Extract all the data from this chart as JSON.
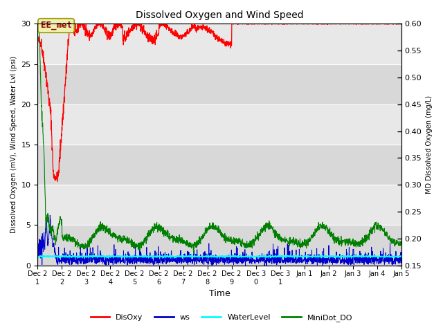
{
  "title": "Dissolved Oxygen and Wind Speed",
  "xlabel": "Time",
  "ylabel_left": "Dissolved Oxygen (mV), Wind Speed, Water Lvl (psi)",
  "ylabel_right": "MD Dissolved Oxygen (mg/L)",
  "ylim_left": [
    0,
    30
  ],
  "ylim_right": [
    0.15,
    0.6
  ],
  "yticks_left": [
    0,
    5,
    10,
    15,
    20,
    25,
    30
  ],
  "yticks_right": [
    0.15,
    0.2,
    0.25,
    0.3,
    0.35,
    0.4,
    0.45,
    0.5,
    0.55,
    0.6
  ],
  "annotation_text": "EE_met",
  "bg_color": "#e8e8e8",
  "bg_band_light": "#ebebeb",
  "bg_band_dark": "#d8d8d8",
  "legend_items": [
    "DisOxy",
    "ws",
    "WaterLevel",
    "MiniDot_DO"
  ],
  "legend_colors": [
    "red",
    "#0000cc",
    "cyan",
    "green"
  ],
  "xtick_labels": [
    "Dec 2\n1",
    "Dec 2\n2",
    "Dec 2\n3",
    "Dec 2\n4",
    "Dec 2\n5",
    "Dec 2\n6",
    "Dec 2\n7",
    "Dec 2\n8",
    "Dec 2\n9",
    "Dec 3\n0",
    "Dec 3\n1",
    "Jan 1",
    "Jan 2",
    "Jan 3",
    "Jan 4",
    "Jan 5"
  ]
}
